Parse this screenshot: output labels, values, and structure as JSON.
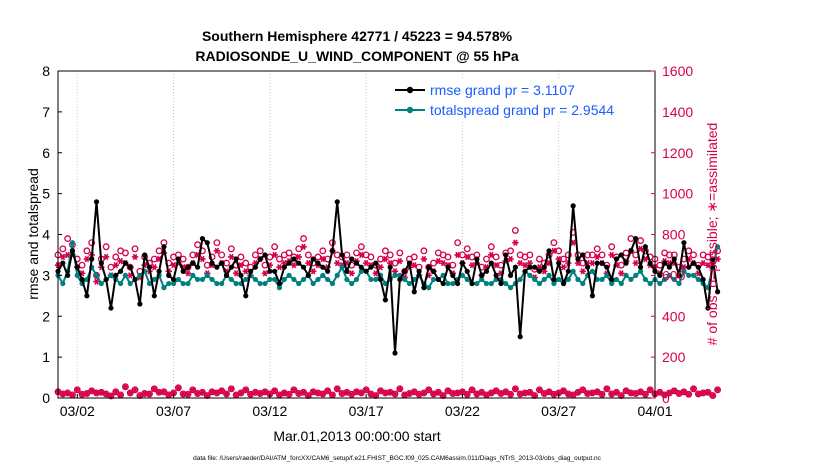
{
  "chart_data": {
    "type": "line",
    "title_line1": "Southern Hemisphere 42771 / 45223 = 94.578%",
    "title_line2": "RADIOSONDE_U_WIND_COMPONENT @ 55 hPa",
    "ylabel_left": "rmse and totalspread",
    "ylabel_right": "# of obs: o=possible; ∗=assimilated",
    "xlabel": "Mar.01,2013 00:00:00 start",
    "footer": "data file: /Users/raeder/DAI/ATM_forcXX/CAM6_setup/f.e21.FHIST_BGC.f09_025.CAM6assim.011/Diags_NTrS_2013-03/obs_diag_output.nc",
    "xlim": [
      1,
      32
    ],
    "ylim_left": [
      0,
      8
    ],
    "ylim_right": [
      0,
      1600
    ],
    "x_ticks": [
      2,
      7,
      12,
      17,
      22,
      27,
      32
    ],
    "x_tick_labels": [
      "03/02",
      "03/07",
      "03/12",
      "03/17",
      "03/22",
      "03/27",
      "04/01"
    ],
    "y_left_ticks": [
      "0",
      "1",
      "2",
      "3",
      "4",
      "5",
      "6",
      "7",
      "8"
    ],
    "y_right_ticks": [
      "0",
      "200",
      "400",
      "600",
      "800",
      "1000",
      "1200",
      "1400",
      "1600"
    ],
    "x_start": 1.0,
    "x_step": 0.25,
    "series": [
      {
        "name": "rmse grand pr = 3.1107",
        "color": "#000000",
        "axis": "left",
        "values": [
          3.1,
          3.3,
          3.0,
          3.6,
          3.2,
          2.9,
          2.5,
          3.4,
          4.8,
          3.3,
          2.9,
          2.2,
          3.0,
          3.1,
          3.3,
          3.2,
          2.9,
          2.3,
          3.5,
          3.2,
          2.5,
          3.1,
          3.7,
          3.0,
          2.9,
          3.4,
          3.1,
          3.2,
          3.3,
          3.2,
          3.9,
          3.8,
          3.3,
          3.2,
          3.3,
          3.0,
          3.2,
          3.4,
          3.0,
          2.5,
          3.1,
          3.2,
          3.4,
          3.5,
          3.1,
          3.1,
          2.8,
          3.2,
          3.3,
          3.4,
          3.3,
          3.2,
          3.0,
          3.4,
          3.3,
          3.2,
          3.1,
          3.6,
          4.8,
          3.5,
          3.1,
          3.4,
          3.3,
          3.2,
          3.1,
          3.2,
          3.3,
          2.9,
          2.4,
          3.2,
          1.1,
          2.9,
          3.1,
          3.3,
          2.6,
          3.1,
          2.7,
          3.2,
          3.1,
          2.9,
          2.8,
          3.2,
          3.0,
          2.8,
          3.3,
          3.1,
          2.8,
          3.4,
          3.0,
          3.1,
          3.3,
          3.0,
          2.8,
          3.5,
          3.0,
          3.2,
          1.5,
          3.1,
          3.2,
          3.2,
          3.1,
          3.2,
          3.6,
          2.9,
          3.3,
          2.8,
          3.1,
          4.7,
          3.4,
          3.5,
          3.2,
          2.5,
          3.3,
          3.3,
          3.2,
          2.9,
          3.4,
          3.5,
          3.3,
          3.6,
          3.9,
          3.2,
          3.7,
          3.3,
          3.1,
          3.0,
          3.3,
          3.2,
          3.4,
          3.0,
          3.8,
          3.2,
          3.3,
          3.2,
          2.9,
          2.2,
          3.4,
          2.6
        ]
      },
      {
        "name": "totalspread grand pr = 2.9544",
        "color": "#008080",
        "axis": "left",
        "values": [
          3.0,
          2.8,
          3.1,
          3.8,
          3.0,
          2.8,
          2.9,
          3.2,
          3.0,
          2.8,
          2.9,
          3.0,
          2.9,
          2.8,
          3.0,
          2.8,
          2.9,
          3.0,
          3.1,
          2.8,
          2.9,
          3.0,
          2.7,
          2.8,
          2.8,
          2.9,
          2.8,
          2.8,
          3.0,
          2.9,
          2.9,
          3.0,
          2.9,
          2.8,
          2.8,
          3.0,
          2.9,
          2.8,
          2.8,
          2.9,
          3.0,
          2.9,
          2.8,
          2.8,
          2.9,
          2.9,
          2.7,
          2.9,
          3.0,
          2.9,
          2.8,
          2.9,
          3.0,
          2.8,
          2.9,
          3.0,
          2.9,
          2.8,
          3.0,
          3.2,
          2.9,
          2.8,
          2.9,
          3.1,
          3.1,
          2.9,
          2.9,
          3.0,
          2.8,
          2.9,
          3.0,
          3.0,
          2.9,
          2.8,
          2.9,
          3.0,
          2.8,
          2.7,
          2.9,
          2.9,
          3.0,
          2.8,
          2.8,
          2.9,
          3.0,
          2.9,
          2.8,
          2.8,
          2.9,
          2.8,
          2.8,
          2.9,
          2.9,
          2.8,
          2.7,
          2.8,
          2.9,
          3.1,
          3.0,
          2.9,
          2.8,
          2.9,
          3.0,
          2.8,
          2.9,
          2.8,
          2.9,
          3.1,
          2.9,
          2.8,
          3.0,
          3.1,
          2.9,
          2.9,
          3.0,
          2.8,
          2.9,
          2.8,
          3.0,
          2.9,
          3.0,
          3.1,
          2.9,
          2.8,
          2.9,
          2.8,
          2.9,
          3.0,
          2.9,
          2.8,
          3.1,
          3.0,
          3.0,
          2.9,
          2.8,
          2.7,
          3.2,
          3.7
        ]
      },
      {
        "name": "possible",
        "marker": "o",
        "color": "#d6004c",
        "axis": "right",
        "values": [
          700,
          730,
          780,
          750,
          680,
          650,
          720,
          760,
          600,
          680,
          740,
          640,
          690,
          720,
          710,
          640,
          730,
          620,
          690,
          660,
          680,
          720,
          760,
          660,
          690,
          700,
          680,
          640,
          700,
          750,
          720,
          650,
          690,
          760,
          700,
          660,
          730,
          650,
          690,
          660,
          640,
          700,
          720,
          650,
          690,
          740,
          680,
          700,
          710,
          690,
          730,
          780,
          700,
          660,
          690,
          720,
          680,
          760,
          700,
          690,
          700,
          650,
          710,
          740,
          700,
          690,
          650,
          680,
          720,
          700,
          660,
          710,
          620,
          680,
          690,
          640,
          720,
          640,
          660,
          710,
          700,
          690,
          650,
          760,
          700,
          730,
          690,
          700,
          640,
          680,
          740,
          690,
          650,
          710,
          720,
          820,
          700,
          690,
          700,
          630,
          680,
          660,
          700,
          760,
          720,
          680,
          700,
          810,
          700,
          660,
          700,
          700,
          730,
          700,
          650,
          740,
          690,
          650,
          710,
          780,
          700,
          770,
          720,
          690,
          680,
          650,
          710,
          700,
          700,
          640,
          680,
          720,
          700,
          650,
          700,
          690,
          700,
          720
        ]
      },
      {
        "name": "assimilated",
        "marker": "*",
        "color": "#d6004c",
        "axis": "right",
        "values": [
          650,
          690,
          700,
          700,
          640,
          610,
          680,
          700,
          570,
          640,
          690,
          600,
          650,
          670,
          660,
          600,
          690,
          590,
          650,
          620,
          640,
          680,
          710,
          620,
          650,
          660,
          640,
          610,
          660,
          700,
          680,
          610,
          650,
          720,
          660,
          620,
          690,
          610,
          650,
          620,
          600,
          660,
          680,
          610,
          650,
          700,
          640,
          660,
          670,
          650,
          690,
          740,
          660,
          620,
          650,
          680,
          640,
          720,
          660,
          650,
          660,
          610,
          670,
          700,
          660,
          650,
          610,
          640,
          680,
          660,
          620,
          670,
          590,
          640,
          650,
          600,
          680,
          600,
          620,
          670,
          660,
          650,
          610,
          700,
          660,
          690,
          650,
          660,
          600,
          640,
          700,
          650,
          610,
          670,
          680,
          760,
          660,
          650,
          660,
          590,
          640,
          620,
          660,
          720,
          680,
          640,
          660,
          760,
          660,
          620,
          660,
          660,
          690,
          660,
          610,
          700,
          650,
          610,
          670,
          720,
          660,
          730,
          680,
          650,
          640,
          610,
          670,
          660,
          660,
          600,
          640,
          680,
          660,
          610,
          660,
          650,
          660,
          680
        ]
      },
      {
        "name": "possible (bottom row)",
        "marker": "o",
        "color": "#d6004c",
        "axis": "right",
        "values": [
          30,
          20,
          25,
          15,
          40,
          18,
          22,
          35,
          25,
          28,
          20,
          10,
          30,
          15,
          55,
          25,
          40,
          12,
          22,
          20,
          45,
          28,
          30,
          15,
          25,
          50,
          20,
          18,
          40,
          22,
          28,
          12,
          30,
          25,
          35,
          20,
          45,
          15,
          25,
          40,
          18,
          28,
          22,
          30,
          20,
          35,
          15,
          25,
          18,
          40,
          22,
          28,
          12,
          30,
          25,
          20,
          35,
          15,
          45,
          22,
          28,
          18,
          30,
          25,
          40,
          20,
          12,
          35,
          25,
          28,
          20,
          45,
          15,
          22,
          30,
          18,
          25,
          40,
          20,
          28,
          12,
          35,
          22,
          25,
          30,
          18,
          40,
          20,
          28,
          15,
          25,
          35,
          22,
          30,
          18,
          45,
          20,
          25,
          28,
          12,
          40,
          22,
          30,
          18,
          25,
          35,
          20,
          15,
          28,
          40,
          22,
          25,
          30,
          18,
          45,
          20,
          28,
          12,
          35,
          25,
          22,
          30,
          18,
          40,
          20,
          28,
          15,
          25,
          35,
          22,
          30,
          18,
          45,
          20,
          25,
          28,
          12,
          40
        ]
      },
      {
        "name": "assimilated (bottom row)",
        "marker": "*",
        "color": "#d6004c",
        "axis": "right",
        "values": [
          30,
          20,
          25,
          15,
          40,
          18,
          22,
          35,
          25,
          28,
          20,
          10,
          30,
          15,
          55,
          25,
          40,
          12,
          22,
          20,
          45,
          28,
          30,
          15,
          25,
          50,
          20,
          18,
          40,
          22,
          28,
          12,
          30,
          25,
          35,
          20,
          45,
          15,
          25,
          40,
          18,
          28,
          22,
          30,
          20,
          35,
          15,
          25,
          18,
          40,
          22,
          28,
          12,
          30,
          25,
          20,
          35,
          15,
          45,
          22,
          28,
          18,
          30,
          25,
          40,
          20,
          12,
          35,
          25,
          28,
          20,
          45,
          15,
          22,
          30,
          18,
          25,
          40,
          20,
          28,
          12,
          35,
          22,
          25,
          30,
          18,
          40,
          20,
          28,
          15,
          25,
          35,
          22,
          30,
          18,
          45,
          20,
          25,
          28,
          12,
          40,
          22,
          30,
          18,
          25,
          35,
          20,
          15,
          28,
          40,
          22,
          25,
          30,
          18,
          45,
          20,
          28,
          12,
          35,
          25,
          22,
          30,
          18,
          40,
          20,
          28,
          15,
          25,
          35,
          22,
          30,
          18,
          45,
          20,
          25,
          28,
          12,
          40
        ]
      }
    ]
  }
}
